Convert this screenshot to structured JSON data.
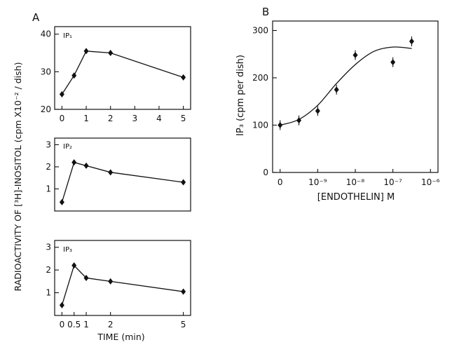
{
  "figure": {
    "shared_ylabel": "RADIOACTIVITY OF [³H]-INOSITOL (cpm X10⁻² / dish)"
  },
  "chart_data": [
    {
      "panel_letter": "A",
      "type": "line",
      "title": "IP₁",
      "x": [
        0,
        0.5,
        1,
        2,
        5
      ],
      "values": [
        24,
        29,
        35.5,
        35,
        28.5
      ],
      "xlim": [
        -0.3,
        5.3
      ],
      "ylim": [
        20,
        42
      ],
      "xticks": [
        "0",
        "1",
        "2",
        "3",
        "4",
        "5"
      ],
      "yticks": [
        "20",
        "30",
        "40"
      ],
      "xlabel": "",
      "ylabel": ""
    },
    {
      "type": "line",
      "title": "IP₂",
      "x": [
        0,
        0.5,
        1,
        2,
        5
      ],
      "values": [
        0.4,
        2.2,
        2.05,
        1.75,
        1.3
      ],
      "xlim": [
        -0.3,
        5.3
      ],
      "ylim": [
        0,
        3.3
      ],
      "xticks": [],
      "yticks": [
        "1",
        "2",
        "3"
      ],
      "xlabel": "",
      "ylabel": ""
    },
    {
      "type": "line",
      "title": "IP₃",
      "x": [
        0,
        0.5,
        1,
        2,
        5
      ],
      "values": [
        0.45,
        2.2,
        1.65,
        1.5,
        1.05
      ],
      "xlim": [
        -0.3,
        5.3
      ],
      "ylim": [
        0,
        3.3
      ],
      "xticks": [
        "0",
        "0.5",
        "1",
        "2",
        "5"
      ],
      "xtick_values": [
        0,
        0.5,
        1,
        2,
        5
      ],
      "yticks": [
        "1",
        "2",
        "3"
      ],
      "xlabel": "TIME (min)",
      "ylabel": ""
    },
    {
      "panel_letter": "B",
      "type": "scatter",
      "title": "",
      "x_exponent": [
        -10,
        -9.5,
        -9,
        -8.5,
        -8,
        -7,
        -6.5
      ],
      "values": [
        100,
        110,
        130,
        175,
        248,
        233,
        277
      ],
      "fit_curve_points": [
        [
          -10,
          100
        ],
        [
          -9.5,
          112
        ],
        [
          -9,
          142
        ],
        [
          -8.5,
          188
        ],
        [
          -8,
          228
        ],
        [
          -7.5,
          256
        ],
        [
          -7,
          265
        ],
        [
          -6.5,
          262
        ]
      ],
      "xlim": [
        -10.2,
        -5.8
      ],
      "ylim": [
        0,
        320
      ],
      "xticks": [
        "0",
        "10⁻⁹",
        "10⁻⁸",
        "10⁻⁷",
        "10⁻⁶"
      ],
      "yticks": [
        "0",
        "100",
        "200",
        "300"
      ],
      "xlabel": "[ENDOTHELIN]   M",
      "ylabel": "IP₃ (cpm per dish)"
    }
  ]
}
